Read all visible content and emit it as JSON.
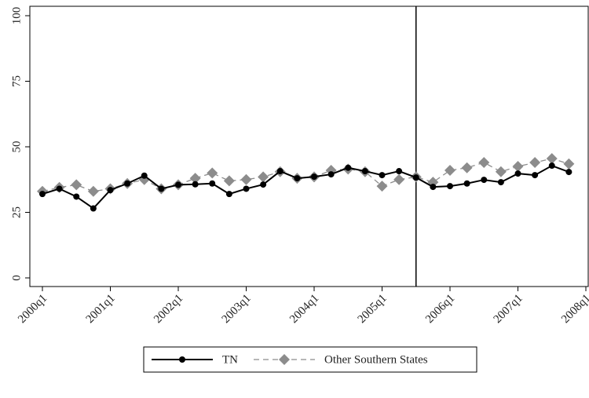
{
  "chart_data": {
    "type": "line",
    "categories": [
      "2000q1",
      null,
      null,
      null,
      "2001q1",
      null,
      null,
      null,
      "2002q1",
      null,
      null,
      null,
      "2003q1",
      null,
      null,
      null,
      "2004q1",
      null,
      null,
      null,
      "2005q1",
      null,
      null,
      null,
      "2006q1",
      null,
      null,
      null,
      "2007q1",
      null,
      null,
      null,
      "2008q1"
    ],
    "series": [
      {
        "name": "TN",
        "color": "#000000",
        "marker": "circle",
        "dash": false,
        "values": [
          32,
          34,
          31,
          26.5,
          33.5,
          36,
          39,
          34,
          35.5,
          35.7,
          36,
          32,
          34,
          35.6,
          40.7,
          38,
          38.6,
          39.5,
          42,
          40.7,
          39.2,
          40.7,
          38.3,
          34.7,
          35,
          36,
          37.4,
          36.5,
          39.8,
          39.2,
          42.8,
          40.4,
          null
        ]
      },
      {
        "name": "Other Southern States",
        "color": "#8c8c8c",
        "marker": "diamond",
        "dash": true,
        "values": [
          33,
          34.5,
          35.5,
          33,
          34,
          36,
          37.5,
          34,
          35.5,
          38,
          40,
          37,
          37.5,
          38.5,
          40.5,
          38,
          38.5,
          41,
          41.5,
          40.5,
          35,
          37.5,
          38.5,
          36.5,
          41,
          42,
          44,
          40.5,
          42.5,
          44,
          45.5,
          43.5,
          null
        ]
      }
    ],
    "ylim": [
      0,
      100
    ],
    "yticks": [
      0,
      25,
      50,
      75,
      100
    ],
    "xline": 22,
    "legend": "bottom"
  }
}
